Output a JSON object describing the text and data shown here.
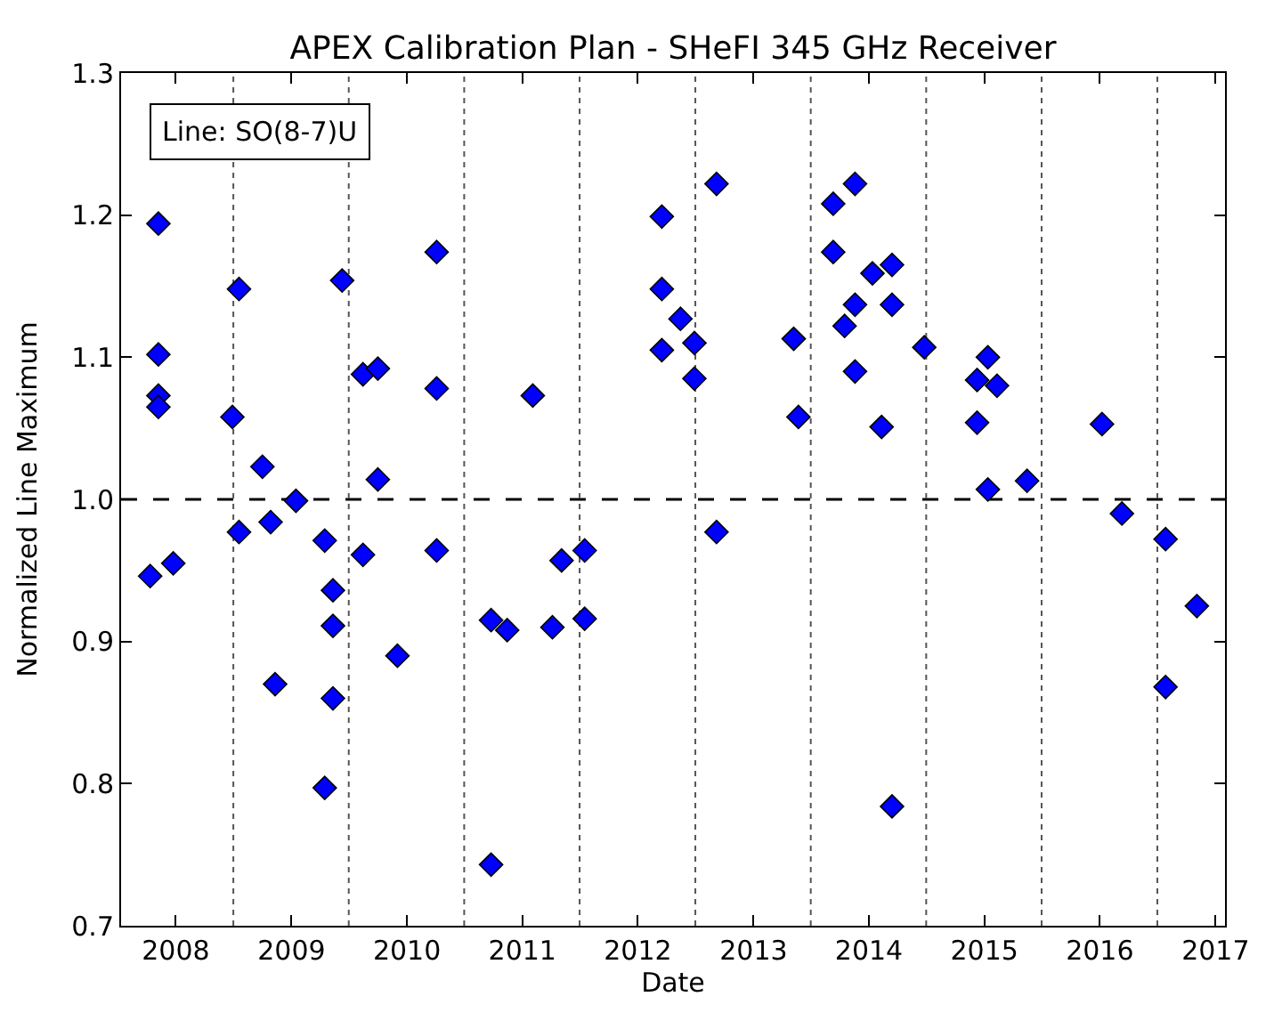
{
  "chart_data": {
    "type": "scatter",
    "title": "APEX Calibration Plan - SHeFI 345 GHz Receiver",
    "xlabel": "Date",
    "ylabel": "Normalized Line Maximum",
    "annotations": [
      "Line: SO(8-7)U"
    ],
    "x": [
      "2007-10-12",
      "2007-11-07",
      "2007-11-07",
      "2007-11-07",
      "2007-11-07",
      "2007-12-24",
      "2008-06-28",
      "2008-07-19",
      "2008-07-19",
      "2008-10-01",
      "2008-10-27",
      "2008-11-10",
      "2009-01-15",
      "2009-04-16",
      "2009-04-16",
      "2009-05-12",
      "2009-05-12",
      "2009-05-12",
      "2009-06-10",
      "2009-08-15",
      "2009-08-15",
      "2009-10-01",
      "2009-10-01",
      "2009-12-02",
      "2010-04-05",
      "2010-04-05",
      "2010-04-05",
      "2010-09-24",
      "2010-09-24",
      "2010-11-14",
      "2011-02-03",
      "2011-04-06",
      "2011-05-05",
      "2011-07-17",
      "2011-07-17",
      "2012-03-17",
      "2012-03-17",
      "2012-03-17",
      "2012-05-15",
      "2012-06-28",
      "2012-06-28",
      "2012-09-06",
      "2012-09-06",
      "2013-05-08",
      "2013-05-23",
      "2013-09-10",
      "2013-09-10",
      "2013-10-16",
      "2013-11-18",
      "2013-11-18",
      "2013-11-18",
      "2014-01-12",
      "2014-02-10",
      "2014-03-15",
      "2014-03-15",
      "2014-03-15",
      "2014-06-25",
      "2014-12-09",
      "2014-12-09",
      "2015-01-12",
      "2015-01-12",
      "2015-02-10",
      "2015-05-16",
      "2016-01-08",
      "2016-03-11",
      "2016-07-27",
      "2016-07-27",
      "2016-11-03"
    ],
    "values": [
      0.946,
      1.194,
      1.102,
      1.073,
      1.065,
      0.955,
      1.058,
      0.977,
      1.148,
      1.023,
      0.984,
      0.87,
      0.999,
      0.971,
      0.797,
      0.936,
      0.911,
      0.86,
      1.154,
      0.961,
      1.088,
      1.092,
      1.014,
      0.89,
      1.174,
      1.078,
      0.964,
      0.915,
      0.743,
      0.908,
      1.073,
      0.91,
      0.957,
      0.964,
      0.916,
      1.199,
      1.148,
      1.105,
      1.127,
      1.11,
      1.085,
      1.222,
      0.977,
      1.113,
      1.058,
      1.208,
      1.174,
      1.122,
      1.222,
      1.137,
      1.09,
      1.159,
      1.051,
      1.165,
      1.137,
      0.784,
      1.107,
      1.084,
      1.054,
      1.1,
      1.007,
      1.08,
      1.013,
      1.053,
      0.99,
      0.972,
      0.868,
      0.925
    ],
    "color": "#0000ff",
    "marker": "diamond",
    "xlim": [
      "2007-07-12",
      "2017-01-31"
    ],
    "xticks": [
      {
        "value": "2008-01-01",
        "label": "2008"
      },
      {
        "value": "2009-01-01",
        "label": "2009"
      },
      {
        "value": "2010-01-01",
        "label": "2010"
      },
      {
        "value": "2011-01-01",
        "label": "2011"
      },
      {
        "value": "2012-01-01",
        "label": "2012"
      },
      {
        "value": "2013-01-01",
        "label": "2013"
      },
      {
        "value": "2014-01-01",
        "label": "2014"
      },
      {
        "value": "2015-01-01",
        "label": "2015"
      },
      {
        "value": "2016-01-01",
        "label": "2016"
      },
      {
        "value": "2017-01-01",
        "label": "2017"
      }
    ],
    "ylim": [
      0.7,
      1.3
    ],
    "yticks": [
      0.7,
      0.8,
      0.9,
      {
        "value": 1.0,
        "label": "1.0"
      },
      1.1,
      1.2,
      1.3
    ],
    "ref_lines": [
      {
        "axis": "y",
        "value": 1.0,
        "color": "#000000",
        "line_style": "dashed"
      },
      {
        "axis": "x",
        "value": "2008-07-01",
        "color": "#555555",
        "line_style": "dotted"
      },
      {
        "axis": "x",
        "value": "2009-07-01",
        "color": "#555555",
        "line_style": "dotted"
      },
      {
        "axis": "x",
        "value": "2010-07-01",
        "color": "#555555",
        "line_style": "dotted"
      },
      {
        "axis": "x",
        "value": "2011-07-01",
        "color": "#555555",
        "line_style": "dotted"
      },
      {
        "axis": "x",
        "value": "2012-07-01",
        "color": "#555555",
        "line_style": "dotted"
      },
      {
        "axis": "x",
        "value": "2013-07-01",
        "color": "#555555",
        "line_style": "dotted"
      },
      {
        "axis": "x",
        "value": "2014-07-01",
        "color": "#555555",
        "line_style": "dotted"
      },
      {
        "axis": "x",
        "value": "2015-07-01",
        "color": "#555555",
        "line_style": "dotted"
      },
      {
        "axis": "x",
        "value": "2016-07-01",
        "color": "#555555",
        "line_style": "dotted"
      }
    ],
    "grid": false,
    "legend": false
  }
}
